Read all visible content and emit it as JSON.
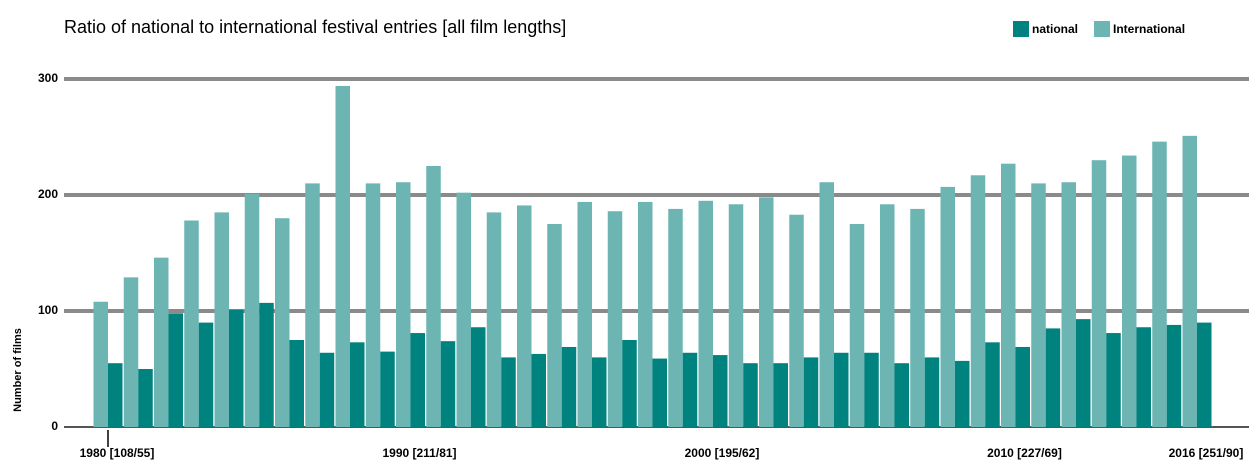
{
  "chart_data": {
    "type": "bar",
    "title": "Ratio of national to international festival entries [all film lengths]",
    "y_label": "Number of films",
    "categories": [
      "1980 [108/55]",
      null,
      null,
      null,
      null,
      null,
      null,
      null,
      null,
      null,
      "1990 [211/81]",
      null,
      null,
      null,
      null,
      null,
      null,
      null,
      null,
      null,
      "2000 [195/62]",
      null,
      null,
      null,
      null,
      null,
      null,
      null,
      null,
      null,
      "2010 [227/69]",
      null,
      null,
      null,
      null,
      null,
      "2016 [251/90]"
    ],
    "series": [
      {
        "name": "International",
        "color": "#6cb5b3",
        "values": [
          108,
          129,
          146,
          178,
          185,
          201,
          180,
          210,
          294,
          210,
          211,
          225,
          202,
          185,
          191,
          175,
          194,
          186,
          194,
          188,
          195,
          192,
          198,
          183,
          211,
          175,
          192,
          188,
          207,
          217,
          227,
          210,
          211,
          230,
          234,
          246,
          251
        ]
      },
      {
        "name": "national",
        "color": "#00837f",
        "values": [
          55,
          50,
          98,
          90,
          101,
          107,
          75,
          64,
          73,
          65,
          81,
          74,
          86,
          60,
          63,
          69,
          60,
          75,
          59,
          64,
          62,
          55,
          55,
          60,
          64,
          64,
          55,
          60,
          57,
          73,
          69,
          85,
          93,
          81,
          86,
          88,
          90
        ]
      }
    ],
    "legend_order": [
      1,
      0
    ],
    "ylim": [
      0,
      300
    ],
    "yticks": [
      0,
      100,
      200,
      300
    ],
    "grid": true,
    "legend": "top-right"
  }
}
